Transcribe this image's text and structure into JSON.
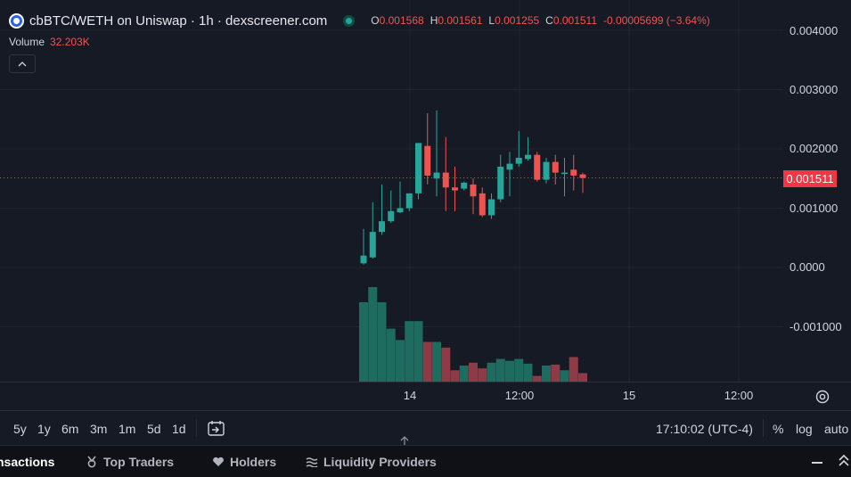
{
  "header": {
    "title": "cbBTC/WETH on Uniswap · 1h · dexscreener.com",
    "logo_icon": "cbbtc-coin-icon",
    "status_icon": "live-status-dot-icon",
    "ohlc": {
      "o_label": "O",
      "o_value": "0.001568",
      "h_label": "H",
      "h_value": "0.001561",
      "l_label": "L",
      "l_value": "0.001255",
      "c_label": "C",
      "c_value": "0.001511",
      "change": "-0.00005699 (−3.64%)"
    }
  },
  "volume": {
    "label": "Volume",
    "value": "32.203K"
  },
  "collapse_icon": "chevron-up-icon",
  "price_axis": {
    "labels": [
      "0.004000",
      "0.003000",
      "0.002000",
      "0.001000",
      "0.0000",
      "-0.001000"
    ],
    "last_price": "0.001511"
  },
  "time_axis": {
    "labels": [
      "14",
      "12:00",
      "15",
      "12:00"
    ]
  },
  "colors": {
    "background": "#161a25",
    "up": "#26a69a",
    "down": "#ef5350",
    "up_volume": "#1e6b5f",
    "down_volume": "#8e3b47",
    "last_price_bg": "#f23645"
  },
  "chart_data": {
    "type": "candlestick",
    "price_axis_range": [
      -0.0019,
      0.0042
    ],
    "candles": [
      {
        "o": 7e-05,
        "h": 0.00065,
        "l": 5e-05,
        "c": 0.0002
      },
      {
        "o": 0.00017,
        "h": 0.0011,
        "l": 0.00015,
        "c": 0.0006
      },
      {
        "o": 0.0006,
        "h": 0.0014,
        "l": 0.00055,
        "c": 0.00078
      },
      {
        "o": 0.00078,
        "h": 0.0013,
        "l": 0.00075,
        "c": 0.00095
      },
      {
        "o": 0.00093,
        "h": 0.00145,
        "l": 0.00092,
        "c": 0.001
      },
      {
        "o": 0.001,
        "h": 0.00125,
        "l": 0.00095,
        "c": 0.00125
      },
      {
        "o": 0.00125,
        "h": 0.0021,
        "l": 0.00115,
        "c": 0.0021
      },
      {
        "o": 0.00205,
        "h": 0.0026,
        "l": 0.0014,
        "c": 0.00155
      },
      {
        "o": 0.0015,
        "h": 0.00265,
        "l": 0.0012,
        "c": 0.0016
      },
      {
        "o": 0.0016,
        "h": 0.0022,
        "l": 0.00095,
        "c": 0.00135
      },
      {
        "o": 0.00135,
        "h": 0.0017,
        "l": 0.00095,
        "c": 0.0013
      },
      {
        "o": 0.00133,
        "h": 0.00145,
        "l": 0.0013,
        "c": 0.00143
      },
      {
        "o": 0.0014,
        "h": 0.0015,
        "l": 0.0009,
        "c": 0.0012
      },
      {
        "o": 0.00125,
        "h": 0.00135,
        "l": 0.00085,
        "c": 0.00088
      },
      {
        "o": 0.00088,
        "h": 0.00125,
        "l": 0.00082,
        "c": 0.00115
      },
      {
        "o": 0.00115,
        "h": 0.0019,
        "l": 0.0011,
        "c": 0.0017
      },
      {
        "o": 0.00165,
        "h": 0.00195,
        "l": 0.0012,
        "c": 0.00175
      },
      {
        "o": 0.00175,
        "h": 0.0023,
        "l": 0.0017,
        "c": 0.00185
      },
      {
        "o": 0.00183,
        "h": 0.0022,
        "l": 0.0018,
        "c": 0.0019
      },
      {
        "o": 0.0019,
        "h": 0.00195,
        "l": 0.00145,
        "c": 0.00148
      },
      {
        "o": 0.00148,
        "h": 0.00185,
        "l": 0.00142,
        "c": 0.00178
      },
      {
        "o": 0.00178,
        "h": 0.0019,
        "l": 0.0014,
        "c": 0.0016
      },
      {
        "o": 0.0016,
        "h": 0.00185,
        "l": 0.0012,
        "c": 0.0016
      },
      {
        "o": 0.00165,
        "h": 0.0019,
        "l": 0.0013,
        "c": 0.00155
      },
      {
        "o": 0.00157,
        "h": 0.0016,
        "l": 0.00126,
        "c": 0.00151
      }
    ],
    "volumes": [
      0.84,
      1.0,
      0.84,
      0.56,
      0.44,
      0.64,
      0.64,
      0.42,
      0.42,
      0.36,
      0.12,
      0.17,
      0.2,
      0.14,
      0.2,
      0.24,
      0.22,
      0.24,
      0.19,
      0.06,
      0.17,
      0.18,
      0.12,
      0.26,
      0.09
    ]
  },
  "toolbar": {
    "timeframes": [
      "5y",
      "1y",
      "6m",
      "3m",
      "1m",
      "5d",
      "1d"
    ],
    "replay_icon": "goto-date-icon",
    "clock": "17:10:02 (UTC-4)",
    "percent_label": "%",
    "log_label": "log",
    "auto_label": "auto",
    "settings_icon": "gear-icon"
  },
  "tabs": {
    "transactions": "nsactions",
    "top_traders": "Top Traders",
    "holders": "Holders",
    "liquidity_providers": "Liquidity Providers",
    "top_traders_icon": "medal-icon",
    "holders_icon": "heart-icon",
    "lp_icon": "waves-icon",
    "minimize_icon": "minus-icon",
    "expand_icon": "double-chevron-up-icon"
  }
}
